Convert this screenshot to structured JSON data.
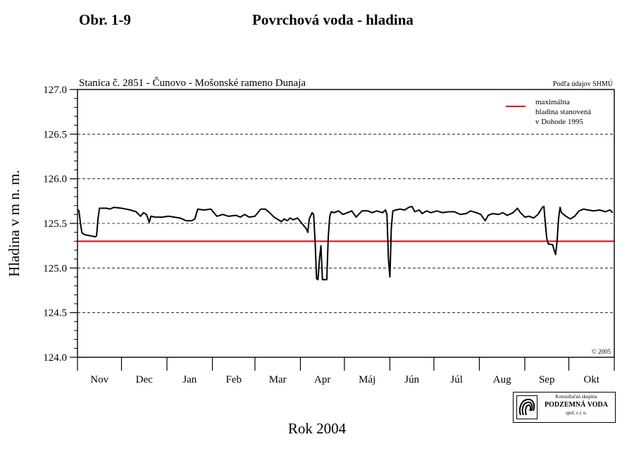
{
  "header": {
    "figure_label": "Obr. 1-9",
    "title": "Povrchová voda - hladina"
  },
  "chart_data": {
    "type": "line",
    "title": "Stanica č. 2851 - Čunovo - Mošonské rameno Dunaja",
    "source_note": "Podľa údajov SHMÚ",
    "copyright": "© 2005",
    "ylabel": "Hladina v m n. m.",
    "xlabel": "Rok 2004",
    "ylim": [
      124.0,
      127.0
    ],
    "yticks": [
      "124.0",
      "124.5",
      "125.0",
      "125.5",
      "126.0",
      "126.5",
      "127.0"
    ],
    "grid": "horizontal dashed",
    "legend_position": "top-right",
    "months": [
      "Nov",
      "Dec",
      "Jan",
      "Feb",
      "Mar",
      "Apr",
      "Máj",
      "Jún",
      "Júl",
      "Aug",
      "Sep",
      "Okt"
    ],
    "x_unit": "day index from 1 Nov 2003",
    "x_range": [
      0,
      366
    ],
    "reference_line": {
      "label_lines": [
        "maximálna",
        "hladina stanovená",
        "v Dohode 1995"
      ],
      "value": 125.3,
      "color": "#e3000f"
    },
    "series": [
      {
        "name": "hladina",
        "color": "#000000",
        "points": [
          [
            0,
            125.66
          ],
          [
            1,
            125.64
          ],
          [
            2,
            125.5
          ],
          [
            3,
            125.4
          ],
          [
            4,
            125.38
          ],
          [
            6,
            125.37
          ],
          [
            9,
            125.36
          ],
          [
            12,
            125.35
          ],
          [
            13,
            125.36
          ],
          [
            14,
            125.55
          ],
          [
            15,
            125.67
          ],
          [
            20,
            125.67
          ],
          [
            22,
            125.66
          ],
          [
            25,
            125.68
          ],
          [
            30,
            125.67
          ],
          [
            33,
            125.66
          ],
          [
            36,
            125.65
          ],
          [
            40,
            125.63
          ],
          [
            43,
            125.58
          ],
          [
            45,
            125.62
          ],
          [
            47,
            125.6
          ],
          [
            49,
            125.51
          ],
          [
            50,
            125.58
          ],
          [
            53,
            125.57
          ],
          [
            58,
            125.57
          ],
          [
            62,
            125.58
          ],
          [
            66,
            125.57
          ],
          [
            70,
            125.56
          ],
          [
            74,
            125.53
          ],
          [
            78,
            125.53
          ],
          [
            80,
            125.55
          ],
          [
            82,
            125.66
          ],
          [
            86,
            125.65
          ],
          [
            91,
            125.66
          ],
          [
            95,
            125.58
          ],
          [
            99,
            125.6
          ],
          [
            103,
            125.58
          ],
          [
            108,
            125.59
          ],
          [
            111,
            125.57
          ],
          [
            114,
            125.6
          ],
          [
            117,
            125.57
          ],
          [
            121,
            125.58
          ],
          [
            125,
            125.66
          ],
          [
            128,
            125.66
          ],
          [
            131,
            125.62
          ],
          [
            134,
            125.57
          ],
          [
            137,
            125.54
          ],
          [
            139,
            125.52
          ],
          [
            141,
            125.55
          ],
          [
            143,
            125.53
          ],
          [
            145,
            125.56
          ],
          [
            147,
            125.54
          ],
          [
            150,
            125.56
          ],
          [
            152,
            125.52
          ],
          [
            154,
            125.48
          ],
          [
            156,
            125.44
          ],
          [
            157,
            125.4
          ],
          [
            158,
            125.55
          ],
          [
            160,
            125.62
          ],
          [
            161,
            125.6
          ],
          [
            162,
            125.3
          ],
          [
            163,
            124.88
          ],
          [
            164,
            124.87
          ],
          [
            165,
            125.1
          ],
          [
            166,
            125.25
          ],
          [
            167,
            124.87
          ],
          [
            170,
            124.87
          ],
          [
            171,
            125.35
          ],
          [
            172,
            125.58
          ],
          [
            173,
            125.63
          ],
          [
            175,
            125.62
          ],
          [
            178,
            125.64
          ],
          [
            181,
            125.6
          ],
          [
            184,
            125.62
          ],
          [
            187,
            125.64
          ],
          [
            190,
            125.57
          ],
          [
            194,
            125.64
          ],
          [
            198,
            125.64
          ],
          [
            201,
            125.62
          ],
          [
            204,
            125.64
          ],
          [
            208,
            125.62
          ],
          [
            210,
            125.65
          ],
          [
            211,
            125.6
          ],
          [
            212,
            125.1
          ],
          [
            213,
            124.9
          ],
          [
            214,
            125.45
          ],
          [
            215,
            125.64
          ],
          [
            217,
            125.65
          ],
          [
            220,
            125.66
          ],
          [
            223,
            125.65
          ],
          [
            226,
            125.68
          ],
          [
            228,
            125.69
          ],
          [
            230,
            125.63
          ],
          [
            233,
            125.65
          ],
          [
            235,
            125.61
          ],
          [
            238,
            125.64
          ],
          [
            241,
            125.62
          ],
          [
            245,
            125.64
          ],
          [
            249,
            125.62
          ],
          [
            253,
            125.63
          ],
          [
            257,
            125.63
          ],
          [
            261,
            125.6
          ],
          [
            265,
            125.61
          ],
          [
            268,
            125.64
          ],
          [
            272,
            125.62
          ],
          [
            275,
            125.6
          ],
          [
            278,
            125.53
          ],
          [
            280,
            125.59
          ],
          [
            283,
            125.61
          ],
          [
            287,
            125.6
          ],
          [
            290,
            125.62
          ],
          [
            293,
            125.59
          ],
          [
            297,
            125.62
          ],
          [
            300,
            125.67
          ],
          [
            302,
            125.62
          ],
          [
            305,
            125.57
          ],
          [
            308,
            125.58
          ],
          [
            311,
            125.56
          ],
          [
            314,
            125.6
          ],
          [
            317,
            125.68
          ],
          [
            318,
            125.69
          ],
          [
            319,
            125.5
          ],
          [
            320,
            125.33
          ],
          [
            321,
            125.27
          ],
          [
            324,
            125.26
          ],
          [
            325,
            125.2
          ],
          [
            326,
            125.15
          ],
          [
            327,
            125.3
          ],
          [
            328,
            125.55
          ],
          [
            329,
            125.68
          ],
          [
            330,
            125.62
          ],
          [
            333,
            125.58
          ],
          [
            336,
            125.55
          ],
          [
            339,
            125.58
          ],
          [
            342,
            125.64
          ],
          [
            345,
            125.66
          ],
          [
            348,
            125.65
          ],
          [
            352,
            125.64
          ],
          [
            356,
            125.65
          ],
          [
            360,
            125.63
          ],
          [
            363,
            125.65
          ],
          [
            365,
            125.62
          ]
        ]
      }
    ]
  },
  "logo": {
    "line1": "Konzultačná skupina",
    "line2": "PODZEMNÁ VODA",
    "line3": "spol. s r. o."
  }
}
